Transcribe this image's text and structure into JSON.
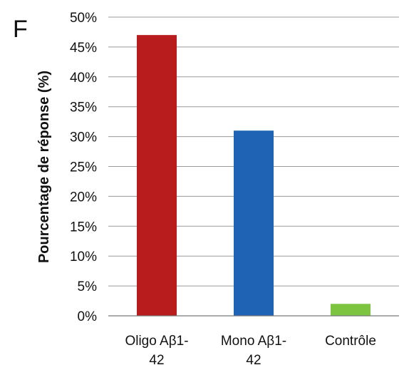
{
  "panel_label": "F",
  "chart_data": {
    "type": "bar",
    "categories": [
      [
        "Oligo Aβ1-",
        "42"
      ],
      [
        "Mono Aβ1-",
        "42"
      ],
      [
        "Contrôle"
      ]
    ],
    "values": [
      47,
      31,
      2
    ],
    "colors": [
      "#b81c1c",
      "#1f63b5",
      "#7dc540"
    ],
    "title": "",
    "xlabel": "",
    "ylabel": "Pourcentage de réponse (%)",
    "ylim": [
      0,
      50
    ],
    "yticks": [
      0,
      5,
      10,
      15,
      20,
      25,
      30,
      35,
      40,
      45,
      50
    ],
    "ytick_labels": [
      "0%",
      "5%",
      "10%",
      "15%",
      "20%",
      "25%",
      "30%",
      "35%",
      "40%",
      "45%",
      "50%"
    ],
    "grid": true,
    "legend": "none"
  }
}
